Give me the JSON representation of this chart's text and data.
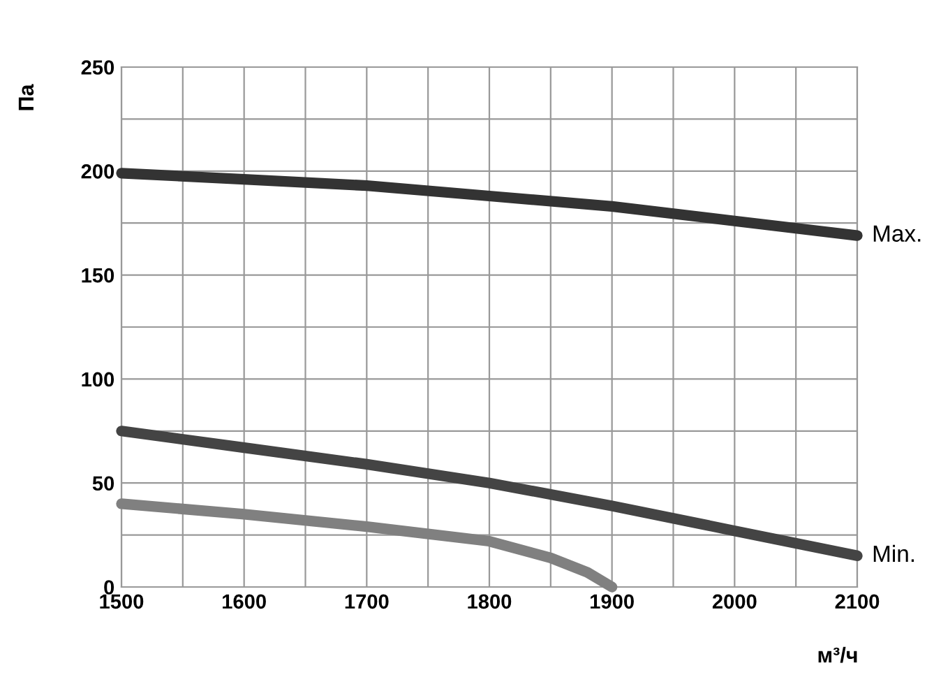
{
  "chart_data": {
    "type": "line",
    "xlabel": "м³/ч",
    "ylabel": "Па",
    "xlim": [
      1500,
      2100
    ],
    "ylim": [
      0,
      250
    ],
    "xticks": [
      1500,
      {
        "value": 1550,
        "label": null
      },
      1600,
      {
        "value": 1650,
        "label": null
      },
      1700,
      {
        "value": 1750,
        "label": null
      },
      1800,
      {
        "value": 1850,
        "label": null
      },
      1900,
      {
        "value": 1950,
        "label": null
      },
      2000,
      {
        "value": 2050,
        "label": null
      },
      2100
    ],
    "yticks": [
      0,
      {
        "value": 25,
        "label": null
      },
      50,
      {
        "value": 75,
        "label": null
      },
      100,
      {
        "value": 125,
        "label": null
      },
      150,
      {
        "value": 175,
        "label": null
      },
      200,
      {
        "value": 225,
        "label": null
      },
      250
    ],
    "grid": true,
    "legend": false,
    "marker": "none",
    "line_style": "solid",
    "series": [
      {
        "name": "Max.",
        "color": "#333333",
        "x": [
          1500,
          1600,
          1700,
          1800,
          1900,
          2000,
          2100
        ],
        "values": [
          199,
          196,
          193,
          188,
          183,
          176,
          169
        ]
      },
      {
        "name": "Min.",
        "color": "#444444",
        "x": [
          1500,
          1600,
          1700,
          1800,
          1900,
          2000,
          2100
        ],
        "values": [
          75,
          67,
          59,
          50,
          39,
          27,
          15
        ]
      },
      {
        "color": "#808080",
        "x": [
          1500,
          1600,
          1700,
          1800,
          1850,
          1880,
          1900
        ],
        "values": [
          40,
          35,
          29,
          22,
          14,
          7,
          0
        ]
      }
    ]
  }
}
